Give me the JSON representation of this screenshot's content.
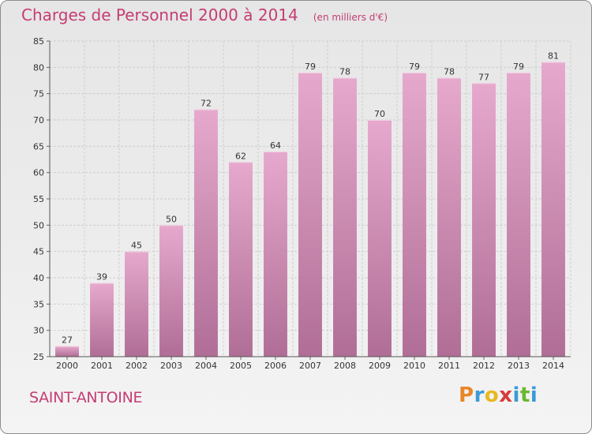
{
  "header": {
    "title": "Charges de Personnel 2000 à 2014",
    "subtitle": "(en milliers d'€)"
  },
  "location": "SAINT-ANTOINE",
  "logo": {
    "text": "Proxiti",
    "letter_colors": [
      "#e8872a",
      "#3a9bd5",
      "#e8b820",
      "#d93a3a",
      "#3a9bd5",
      "#6bb82e",
      "#3a9bd5"
    ]
  },
  "colors": {
    "bar_light": "#e6a9cd",
    "bar_dark": "#b06e96",
    "grid": "#cfcfcf",
    "title": "#c43d73"
  },
  "chart_data": {
    "type": "bar",
    "categories": [
      "2000",
      "2001",
      "2002",
      "2003",
      "2004",
      "2005",
      "2006",
      "2007",
      "2008",
      "2009",
      "2010",
      "2011",
      "2012",
      "2013",
      "2014"
    ],
    "values": [
      27,
      39,
      45,
      50,
      72,
      62,
      64,
      79,
      78,
      70,
      79,
      78,
      77,
      79,
      81
    ],
    "title": "Charges de Personnel 2000 à 2014",
    "subtitle": "(en milliers d'€)",
    "ylim": [
      25,
      85
    ],
    "yticks": [
      25,
      30,
      35,
      40,
      45,
      50,
      55,
      60,
      65,
      70,
      75,
      80,
      85
    ],
    "grid": true,
    "data_labels": true
  }
}
